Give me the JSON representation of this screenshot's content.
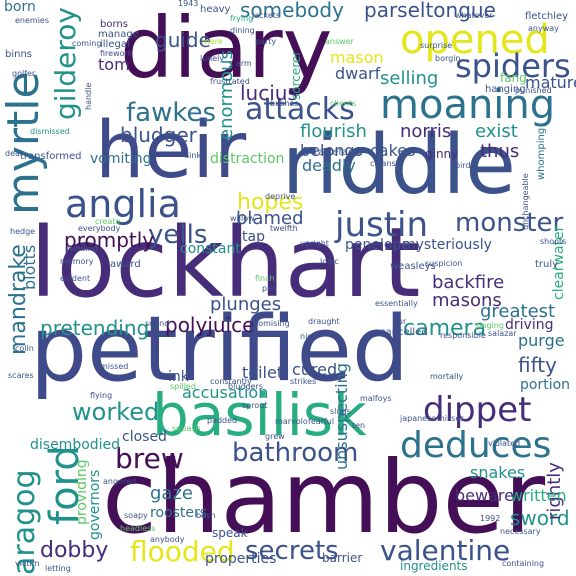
{
  "words": {
    "lockhart": "lockhart",
    "chamber": "chamber",
    "petrified": "petrified",
    "diary": "diary",
    "heir": "heir",
    "riddle": "riddle",
    "basilisk": "basilisk",
    "myrtle": "myrtle",
    "moaning": "moaning",
    "opened": "opened",
    "anglia": "anglia",
    "attacks": "attacks",
    "spiders": "spiders",
    "justin": "justin",
    "fawkes": "fawkes",
    "gilderoy": "gilderoy",
    "deduces": "deduces",
    "dippet": "dippet",
    "ford": "ford",
    "bathroom": "bathroom",
    "secrets": "secrets",
    "valentine": "valentine",
    "flooded": "flooded",
    "aragog": "aragog",
    "brew": "brew",
    "worked": "worked",
    "mandrake": "mandrake",
    "monster": "monster",
    "yells": "yells",
    "hopes": "hopes",
    "parseltongue": "parseltongue",
    "somebody": "somebody",
    "lucius": "lucius",
    "bludger": "bludger",
    "camera": "camera",
    "dobby": "dobby",
    "sword": "sword",
    "polyjuice": "polyjuice",
    "promptly": "promptly",
    "pretending": "pretending",
    "masons": "masons",
    "backfire": "backfire",
    "greatest": "greatest",
    "fifty": "fifty",
    "guide": "guide",
    "tom": "tom",
    "mason": "mason",
    "selling": "selling",
    "flourish": "flourish",
    "norris": "norris",
    "exist": "exist",
    "thus": "thus",
    "enormous": "enormous",
    "belongs": "belongs",
    "cakes": "cakes",
    "dwarf": "dwarf",
    "mature": "mature",
    "blamed": "blamed",
    "deadly": "deadly",
    "vomiting": "vomiting",
    "distraction": "distraction",
    "plunges": "plunges",
    "toilet": "toilet",
    "cured": "cured",
    "unsuspecting": "unsuspecting",
    "accusation": "accusation",
    "snakes": "snakes",
    "rightly": "rightly",
    "written": "written",
    "beware": "beware",
    "gaze": "gaze",
    "roosters": "roosters",
    "closed": "closed",
    "disembodied": "disembodied",
    "providing": "providing",
    "governors": "governors",
    "properties": "properties",
    "ingredients": "ingredients",
    "barrier": "barrier",
    "speak": "speak",
    "blotts": "blotts",
    "constant": "constant",
    "mysteriously": "mysteriously",
    "penelope": "penelope",
    "tap": "tap",
    "purge": "purge",
    "driving": "driving",
    "portion": "portion",
    "clearwater": "clearwater",
    "ink": "ink",
    "sorcerer": "sorcerer",
    "ginny": "ginny",
    "born": "born",
    "fang": "fang",
    "mere": "mere",
    "frying": "frying",
    "heavy": "heavy",
    "jackets": "jackets",
    "whatever": "whatever",
    "fletchley": "fletchley",
    "anyway": "anyway",
    "enemies": "enemies",
    "borns": "borns",
    "illegal": "illegal",
    "binns": "binns",
    "golfer": "golfer",
    "manage": "manage",
    "party": "party",
    "lonely": "lonely",
    "arm": "arm",
    "surprise": "surprise",
    "borgin": "borgin",
    "punished": "punished",
    "hanging": "hanging",
    "dismissed": "dismissed",
    "transformed": "transformed",
    "sinks": "sinks",
    "artefacts": "artefacts",
    "cleans": "cleans",
    "bushes": "bushes",
    "bird": "bird",
    "whomping": "whomping",
    "willow": "willow",
    "deprive": "deprive",
    "twelfth": "twelfth",
    "hedge": "hedge",
    "memory": "memory",
    "award": "award",
    "logic": "logic",
    "weasleys": "weasleys",
    "suspicion": "suspicion",
    "truly": "truly",
    "evident": "evident",
    "sound": "sound",
    "draught": "draught",
    "nick": "nick",
    "essentially": "essentially",
    "cancelled": "cancelled",
    "responsible": "responsible",
    "salazar": "salazar",
    "colin": "colin",
    "missed": "missed",
    "spilled": "spilled",
    "bludgers": "bludgers",
    "strikes": "strikes",
    "mortally": "mortally",
    "scares": "scares",
    "flying": "flying",
    "sprout": "sprout",
    "slugs": "slugs",
    "malfoys": "malfoys",
    "misses": "misses",
    "padded": "padded",
    "marvolo": "marvolo",
    "fearful": "fearful",
    "japanese": "japanese",
    "violated": "violated",
    "necessary": "necessary",
    "victim": "victim",
    "anybody": "anybody",
    "headless": "headless",
    "containing": "containing",
    "promising": "promising",
    "finch": "finch",
    "pan": "pan",
    "upright": "upright",
    "everybody": "everybody",
    "create": "create",
    "pudding": "pudding",
    "singing": "singing",
    "shoots": "shoots",
    "deal": "deal",
    "coming": "coming",
    "firework": "firework",
    "1943": "1943",
    "1992": "1992",
    "answer": "answer",
    "clients": "clients",
    "frustrated": "frustrated",
    "handle": "handle",
    "dining": "dining",
    "squash": "squash",
    "our": "our",
    "soapy": "soapy",
    "angered": "angered",
    "grew": "grew",
    "ten": "ten",
    "unchangeable": "unchangeable",
    "letting": "letting",
    "bush": "bush",
    "constantly": "constantly"
  }
}
